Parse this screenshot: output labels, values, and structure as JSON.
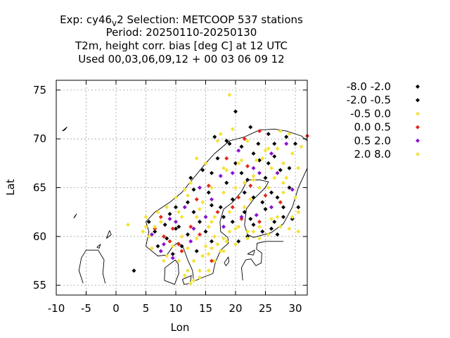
{
  "chart_data": {
    "type": "scatter",
    "title": {
      "exp_prefix": "Exp: cy46",
      "exp_sub": "v",
      "exp_suffix": "2   Selection: METCOOP    537 stations",
      "line2": "Period: 20250110-20250130",
      "line3": "T2m, height corr. bias [deg C] at  12 UTC",
      "line4": "Used  00,03,06,09,12  + 00 03 06 09 12"
    },
    "xlabel": "Lon",
    "ylabel": "Lat",
    "xlim": [
      -10,
      32
    ],
    "ylim": [
      54,
      76
    ],
    "xticks": [
      -10,
      -5,
      0,
      5,
      10,
      15,
      20,
      25,
      30
    ],
    "xtick_labels": [
      "-10",
      "-5",
      "0",
      "5",
      "10",
      "15",
      "20",
      "25",
      "30"
    ],
    "yticks": [
      55,
      60,
      65,
      70,
      75
    ],
    "ytick_labels": [
      "55",
      "60",
      "65",
      "70",
      "75"
    ],
    "grid": true,
    "legend_position": "right",
    "series": [
      {
        "name": "-8.0 -2.0",
        "color": "#000000",
        "points": [
          [
            20,
            72.8
          ],
          [
            22.5,
            71.2
          ],
          [
            25.5,
            70.5
          ],
          [
            23.8,
            69.5
          ],
          [
            21,
            69.2
          ],
          [
            26.5,
            68.2
          ],
          [
            24,
            67.8
          ],
          [
            20,
            67.5
          ],
          [
            17,
            68
          ],
          [
            27.5,
            66.8
          ],
          [
            25,
            66
          ],
          [
            22,
            65.8
          ],
          [
            18.5,
            65.5
          ],
          [
            15.5,
            64.5
          ],
          [
            29,
            65
          ],
          [
            26,
            64.5
          ],
          [
            23,
            64
          ],
          [
            19.5,
            63.8
          ],
          [
            16,
            63.2
          ],
          [
            13,
            62.5
          ],
          [
            28,
            63
          ],
          [
            25,
            62.8
          ],
          [
            21.5,
            62.5
          ],
          [
            18,
            62
          ],
          [
            14,
            61.5
          ],
          [
            10.5,
            61
          ],
          [
            29.5,
            61.8
          ],
          [
            26.5,
            61.5
          ],
          [
            23,
            61.2
          ],
          [
            12,
            60.2
          ],
          [
            8.5,
            59.8
          ],
          [
            7,
            59
          ],
          [
            11,
            59
          ],
          [
            24.5,
            60.5
          ],
          [
            22,
            60
          ],
          [
            27,
            60.2
          ],
          [
            16,
            59.5
          ],
          [
            13.5,
            58.5
          ],
          [
            9.5,
            58.2
          ],
          [
            6.5,
            60.5
          ],
          [
            5.5,
            61.5
          ],
          [
            30,
            69.5
          ],
          [
            28.5,
            70.2
          ],
          [
            18.5,
            69.8
          ],
          [
            12.5,
            66
          ],
          [
            14.5,
            66.8
          ],
          [
            21,
            66.5
          ],
          [
            10,
            63
          ],
          [
            9,
            62.3
          ],
          [
            3,
            56.5
          ]
        ]
      },
      {
        "name": "-2.0 -0.5",
        "color": "#000000",
        "points": [
          [
            19,
            69.5
          ],
          [
            23,
            68.5
          ],
          [
            16,
            66.5
          ],
          [
            25.5,
            67.5
          ],
          [
            21.5,
            64.5
          ],
          [
            17.5,
            63
          ],
          [
            27,
            64
          ],
          [
            24.5,
            63.5
          ],
          [
            12,
            63.5
          ],
          [
            19.5,
            61.5
          ],
          [
            28,
            62
          ],
          [
            20.5,
            59.5
          ],
          [
            15,
            60.5
          ],
          [
            26,
            60.8
          ],
          [
            22.5,
            61.8
          ],
          [
            8.2,
            61.2
          ],
          [
            10,
            60.8
          ],
          [
            13,
            64.8
          ],
          [
            30.5,
            63
          ],
          [
            29,
            67
          ],
          [
            16.5,
            70.2
          ],
          [
            26.5,
            69.5
          ]
        ]
      },
      {
        "name": "-0.5 0.0",
        "color": "#f5e23c",
        "points": [
          [
            19,
            74.5
          ],
          [
            17,
            69.8
          ],
          [
            13.5,
            68
          ],
          [
            15,
            67.5
          ],
          [
            12.5,
            65.5
          ],
          [
            11.5,
            64.8
          ],
          [
            10,
            64
          ],
          [
            7,
            62.5
          ],
          [
            5,
            62
          ],
          [
            5.5,
            60
          ],
          [
            8.5,
            58
          ],
          [
            10.5,
            57.5
          ],
          [
            12,
            56.5
          ],
          [
            13,
            55.5
          ],
          [
            14,
            55.8
          ],
          [
            15.5,
            56.5
          ],
          [
            16.5,
            57.5
          ],
          [
            17.5,
            58.5
          ],
          [
            18.5,
            59.5
          ],
          [
            19,
            60.5
          ],
          [
            20.5,
            61
          ],
          [
            21.5,
            63
          ],
          [
            22.5,
            63.8
          ],
          [
            24,
            65
          ],
          [
            26.5,
            66
          ],
          [
            28,
            67.5
          ],
          [
            29.5,
            68.5
          ],
          [
            31,
            69.2
          ],
          [
            29,
            70.5
          ],
          [
            27,
            69
          ],
          [
            25,
            68.8
          ],
          [
            23,
            66.2
          ],
          [
            20,
            65
          ],
          [
            18,
            64.5
          ],
          [
            16.5,
            62
          ],
          [
            14,
            62.8
          ],
          [
            12,
            58.8
          ],
          [
            14.5,
            58
          ],
          [
            16,
            58.8
          ],
          [
            2,
            61.2
          ],
          [
            23,
            60.5
          ],
          [
            25.5,
            60.2
          ],
          [
            27.5,
            61
          ],
          [
            29,
            60.8
          ],
          [
            30.5,
            62.5
          ],
          [
            28,
            64.5
          ],
          [
            21,
            67.8
          ],
          [
            18,
            67
          ],
          [
            15.5,
            61
          ],
          [
            13.5,
            59.8
          ],
          [
            11,
            62
          ],
          [
            7.5,
            61.5
          ]
        ]
      },
      {
        "name": "0.0 0.5",
        "color": "#e02a1a",
        "points": [
          [
            24,
            70.8
          ],
          [
            21.5,
            70
          ],
          [
            32,
            70.3
          ],
          [
            18.5,
            68
          ],
          [
            22,
            67.2
          ],
          [
            15.5,
            65.2
          ],
          [
            13.5,
            63.8
          ],
          [
            20.5,
            64
          ],
          [
            25,
            64.2
          ],
          [
            17,
            62.5
          ],
          [
            12.5,
            61
          ],
          [
            8,
            60
          ],
          [
            10.5,
            59.2
          ],
          [
            6.5,
            60.8
          ],
          [
            9.5,
            60.8
          ],
          [
            24,
            61.5
          ],
          [
            21,
            61.8
          ],
          [
            27.5,
            63.5
          ],
          [
            16,
            57.5
          ],
          [
            14,
            60.2
          ],
          [
            19.5,
            63
          ],
          [
            22.5,
            65.2
          ],
          [
            11,
            58.5
          ],
          [
            9,
            59.5
          ],
          [
            7.5,
            62
          ]
        ]
      },
      {
        "name": "0.5 2.0",
        "color": "#8a10d0",
        "points": [
          [
            28.5,
            69.5
          ],
          [
            26,
            68.5
          ],
          [
            20.5,
            68.8
          ],
          [
            23,
            67
          ],
          [
            17.5,
            66.2
          ],
          [
            14,
            65
          ],
          [
            11.5,
            63
          ],
          [
            9,
            61.8
          ],
          [
            6,
            60.2
          ],
          [
            7.5,
            58.5
          ],
          [
            9.5,
            57.8
          ],
          [
            12.5,
            59.5
          ],
          [
            15,
            62
          ],
          [
            18,
            61
          ],
          [
            23.5,
            62.2
          ],
          [
            26,
            63
          ],
          [
            29.5,
            64.8
          ],
          [
            21,
            62
          ],
          [
            24,
            66.5
          ],
          [
            16,
            63.8
          ],
          [
            10,
            61.5
          ],
          [
            13,
            60.8
          ],
          [
            8,
            59.2
          ],
          [
            19.5,
            66.5
          ],
          [
            27,
            66.5
          ]
        ]
      },
      {
        "name": "2.0 8.0",
        "color": "#f5e23c",
        "points": [
          [
            17.5,
            70.5
          ],
          [
            19.5,
            71
          ],
          [
            22,
            69.8
          ],
          [
            24.5,
            68
          ],
          [
            26,
            67
          ],
          [
            28.5,
            66
          ],
          [
            30,
            64
          ],
          [
            27,
            62
          ],
          [
            24,
            61
          ],
          [
            22,
            60.5
          ],
          [
            20,
            60.8
          ],
          [
            18,
            59.8
          ],
          [
            16.5,
            60
          ],
          [
            15,
            59
          ],
          [
            13,
            57.5
          ],
          [
            11.5,
            56
          ],
          [
            12.5,
            55.2
          ],
          [
            14,
            56.5
          ],
          [
            15.5,
            58.2
          ],
          [
            17,
            59.2
          ],
          [
            19,
            62.5
          ],
          [
            21.5,
            65.5
          ],
          [
            23.5,
            67.8
          ],
          [
            25.5,
            69
          ],
          [
            27.5,
            70.8
          ],
          [
            30.5,
            67
          ],
          [
            29.5,
            62
          ],
          [
            26,
            61.8
          ],
          [
            24,
            59.8
          ],
          [
            22,
            59.8
          ],
          [
            20,
            59.2
          ],
          [
            18,
            58.5
          ],
          [
            16,
            61.5
          ],
          [
            14.5,
            63.5
          ],
          [
            12,
            64.2
          ],
          [
            10.5,
            62.5
          ],
          [
            8.5,
            63
          ],
          [
            6.5,
            61
          ],
          [
            5,
            61
          ],
          [
            4.5,
            60.5
          ],
          [
            6,
            58.8
          ],
          [
            8,
            57.5
          ],
          [
            9.5,
            59
          ],
          [
            11,
            60
          ],
          [
            13.5,
            62
          ],
          [
            16,
            65
          ],
          [
            18.5,
            66.8
          ],
          [
            20.5,
            67.5
          ],
          [
            23,
            65.8
          ],
          [
            25.5,
            65
          ],
          [
            28,
            65.5
          ],
          [
            30.5,
            60.5
          ]
        ]
      }
    ]
  }
}
